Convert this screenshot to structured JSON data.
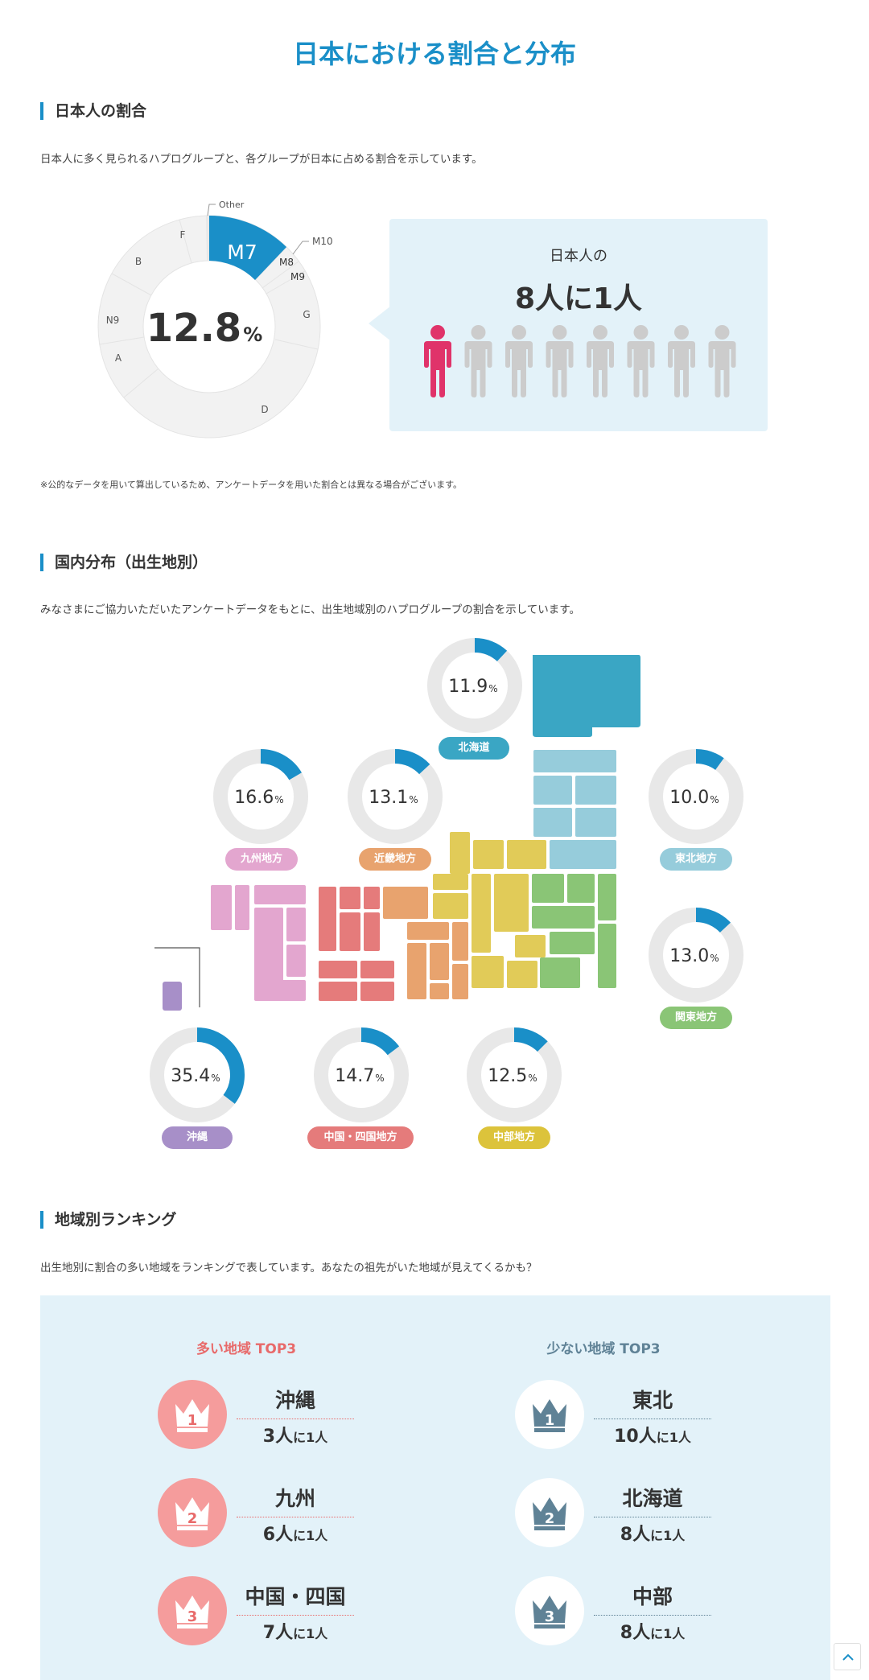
{
  "page_title": "日本における割合と分布",
  "section1": {
    "heading": "日本人の割合",
    "desc": "日本人に多く見られるハプログループと、各グループが日本に占める割合を示しています。",
    "donut_center_value": "12.8",
    "donut_center_unit": "%",
    "segments": [
      "Other",
      "M7",
      "M8",
      "M10",
      "M9",
      "G",
      "D",
      "A",
      "N9",
      "B",
      "F"
    ],
    "callout_line1": "日本人の",
    "callout_line2": "8人に1人",
    "people_total": 8,
    "people_highlight": 1,
    "note": "※公的なデータを用いて算出しているため、アンケートデータを用いた割合とは異なる場合がございます。",
    "colors": {
      "highlight": "#1a8fc8",
      "person_highlight": "#e0336a",
      "person_default": "#cccccc"
    }
  },
  "section2": {
    "heading": "国内分布（出生地別）",
    "desc": "みなさまにご協力いただいたアンケートデータをもとに、出生地域別のハプログループの割合を示しています。",
    "unit": "%",
    "regions": [
      {
        "name": "北海道",
        "value": "11.9",
        "color": "#3aa6c4"
      },
      {
        "name": "九州地方",
        "value": "16.6",
        "color": "#e3a6cf"
      },
      {
        "name": "近畿地方",
        "value": "13.1",
        "color": "#e8a36e"
      },
      {
        "name": "東北地方",
        "value": "10.0",
        "color": "#96ccdb"
      },
      {
        "name": "関東地方",
        "value": "13.0",
        "color": "#8ac576"
      },
      {
        "name": "沖縄",
        "value": "35.4",
        "color": "#a78fc8"
      },
      {
        "name": "中国・四国地方",
        "value": "14.7",
        "color": "#e57b7b"
      },
      {
        "name": "中部地方",
        "value": "12.5",
        "color": "#dcc33b"
      }
    ]
  },
  "section3": {
    "heading": "地域別ランキング",
    "desc": "出生地別に割合の多い地域をランキングで表しています。あなたの祖先がいた地域が見えてくるかも？",
    "top_title": "多い地域 TOP3",
    "bottom_title": "少ない地域 TOP3",
    "top": [
      {
        "rank": "1",
        "name": "沖縄",
        "num": "3人",
        "suffix": "に1人"
      },
      {
        "rank": "2",
        "name": "九州",
        "num": "6人",
        "suffix": "に1人"
      },
      {
        "rank": "3",
        "name": "中国・四国",
        "num": "7人",
        "suffix": "に1人"
      }
    ],
    "bottom": [
      {
        "rank": "1",
        "name": "東北",
        "num": "10人",
        "suffix": "に1人"
      },
      {
        "rank": "2",
        "name": "北海道",
        "num": "8人",
        "suffix": "に1人"
      },
      {
        "rank": "3",
        "name": "中部",
        "num": "8人",
        "suffix": "に1人"
      }
    ],
    "colors": {
      "top": "#e86a6a",
      "bottom": "#5f8296"
    }
  }
}
